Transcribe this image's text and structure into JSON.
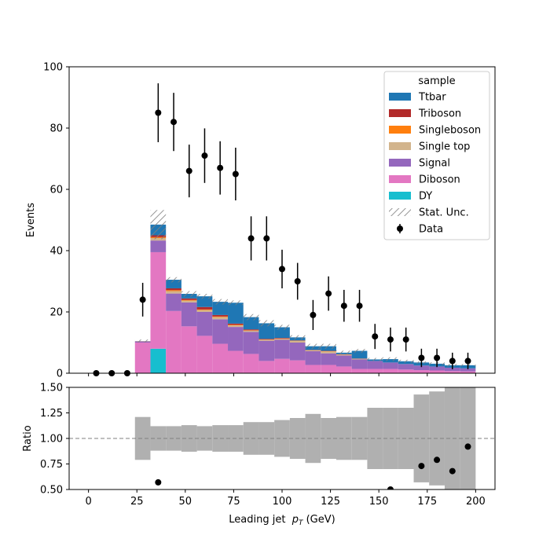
{
  "chart_data": [
    {
      "type": "bar",
      "stacked": true,
      "ylabel": "Events",
      "xlabel": "",
      "xlim": [
        -10,
        210
      ],
      "ylim": [
        0,
        100
      ],
      "xticks": [
        0,
        25,
        50,
        75,
        100,
        125,
        150,
        175,
        200
      ],
      "yticks": [
        0,
        20,
        40,
        60,
        80,
        100
      ],
      "bin_edges": [
        0,
        8,
        16,
        24,
        32,
        40,
        48,
        56,
        64,
        72,
        80,
        88,
        96,
        104,
        112,
        120,
        128,
        136,
        144,
        152,
        160,
        168,
        176,
        184,
        192,
        200
      ],
      "legend": {
        "title": "sample",
        "position": "top-right",
        "entries": [
          "Ttbar",
          "Triboson",
          "Singleboson",
          "Single top",
          "Signal",
          "Diboson",
          "DY",
          "Stat. Unc.",
          "Data"
        ]
      },
      "series": [
        {
          "name": "DY",
          "color": "#17becf",
          "values": [
            0,
            0,
            0,
            0,
            8.0,
            0,
            0,
            0,
            0,
            0,
            0,
            0,
            0,
            0,
            0,
            0,
            0,
            0,
            0,
            0,
            0,
            0,
            0,
            0,
            0
          ]
        },
        {
          "name": "Diboson",
          "color": "#e377c2",
          "values": [
            0,
            0,
            0,
            10.0,
            31.5,
            20.3,
            15.3,
            12.2,
            9.6,
            7.3,
            6.3,
            4.0,
            4.7,
            4.2,
            2.7,
            2.7,
            2.2,
            1.4,
            1.4,
            1.4,
            1.2,
            1.0,
            0.9,
            0.7,
            0.6
          ]
        },
        {
          "name": "Signal",
          "color": "#9467bd",
          "values": [
            0,
            0,
            0,
            0.4,
            3.8,
            5.7,
            7.8,
            7.8,
            8.0,
            7.8,
            7.2,
            6.6,
            6.2,
            5.8,
            4.5,
            3.8,
            3.6,
            3.1,
            2.6,
            2.1,
            1.8,
            1.5,
            1.3,
            1.1,
            1.0
          ]
        },
        {
          "name": "Single top",
          "color": "#d2b48c",
          "values": [
            0,
            0,
            0,
            0.1,
            0.8,
            0.8,
            0.6,
            0.6,
            0.7,
            0.5,
            0.4,
            0.3,
            0.3,
            0.5,
            0.2,
            0.6,
            0.2,
            0.2,
            0,
            0,
            0,
            0,
            0,
            0,
            0
          ]
        },
        {
          "name": "Singleboson",
          "color": "#ff7f0e",
          "values": [
            0,
            0,
            0,
            0,
            0.3,
            0.3,
            0.2,
            0.2,
            0.2,
            0.2,
            0.1,
            0.1,
            0.1,
            0.1,
            0.1,
            0.1,
            0.1,
            0,
            0,
            0,
            0,
            0,
            0,
            0,
            0
          ]
        },
        {
          "name": "Triboson",
          "color": "#b22a2a",
          "values": [
            0,
            0,
            0,
            0,
            0.6,
            0.6,
            0.5,
            0.8,
            0.5,
            0.4,
            0.3,
            0.2,
            0.2,
            0.1,
            0.1,
            0.1,
            0.1,
            0.1,
            0,
            0,
            0,
            0,
            0,
            0,
            0
          ]
        },
        {
          "name": "Ttbar",
          "color": "#1f77b4",
          "values": [
            0,
            0,
            0,
            0,
            3.5,
            2.8,
            1.5,
            3.5,
            4.3,
            6.8,
            4.0,
            5.1,
            3.5,
            1.0,
            1.2,
            1.5,
            0.5,
            2.5,
            0.5,
            1.1,
            0.9,
            1.0,
            0.9,
            0.8,
            1.0
          ]
        }
      ],
      "stat_unc": [
        0,
        0,
        0,
        1.0,
        9.5,
        1.7,
        1.8,
        1.6,
        1.8,
        1.5,
        2.0,
        2.0,
        1.6,
        1.4,
        1.6,
        1.6,
        1.3,
        1.2,
        1.0,
        1.2,
        1.0,
        0.7,
        0.9,
        0.8,
        0.7
      ],
      "data": {
        "name": "Data",
        "color": "#000000",
        "x": [
          4,
          12,
          20,
          28,
          36,
          44,
          52,
          60,
          68,
          76,
          84,
          92,
          100,
          108,
          116,
          124,
          132,
          140,
          148,
          156,
          164,
          172,
          180,
          188,
          196
        ],
        "y": [
          0,
          0,
          0,
          24,
          85,
          82,
          66,
          71,
          67,
          65,
          44,
          44,
          34,
          30,
          19,
          26,
          22,
          22,
          12,
          11,
          11,
          5,
          5,
          4,
          4
        ],
        "yerr": [
          0,
          0,
          0,
          5.5,
          9.6,
          9.5,
          8.6,
          8.9,
          8.7,
          8.6,
          7.2,
          7.2,
          6.3,
          6.0,
          4.9,
          5.6,
          5.2,
          5.2,
          4.1,
          3.9,
          3.9,
          3.0,
          3.0,
          2.7,
          2.7
        ]
      }
    },
    {
      "type": "scatter",
      "ylabel": "Ratio",
      "xlabel": "Leading jet  p_T (GeV)",
      "xlabel_parts": {
        "prefix": "Leading jet  ",
        "var": "p",
        "sub": "T",
        "suffix": " (GeV)"
      },
      "xlim": [
        -10,
        210
      ],
      "ylim": [
        0.5,
        1.5
      ],
      "xticks": [
        0,
        25,
        50,
        75,
        100,
        125,
        150,
        175,
        200
      ],
      "yticks": [
        "0.50",
        "0.75",
        "1.00",
        "1.25",
        "1.50"
      ],
      "reference_line": 1.0,
      "unc_band": {
        "color": "#b0b0b0",
        "rel_unc": [
          0,
          0,
          0,
          0.21,
          0.12,
          0.12,
          0.13,
          0.12,
          0.13,
          0.13,
          0.16,
          0.16,
          0.18,
          0.2,
          0.24,
          0.2,
          0.21,
          0.21,
          0.3,
          0.3,
          0.3,
          0.43,
          0.46,
          0.59,
          0.59
        ]
      },
      "points": {
        "x": [
          36,
          156,
          172,
          180,
          188,
          196
        ],
        "y": [
          0.57,
          0.5,
          0.73,
          0.79,
          0.68,
          0.92
        ]
      }
    }
  ]
}
